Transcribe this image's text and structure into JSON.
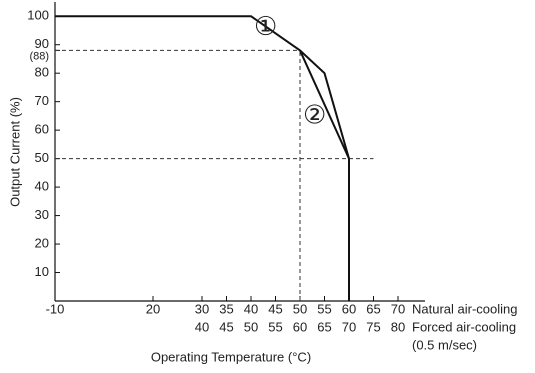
{
  "chart_data": {
    "type": "line",
    "x_label": "Operating Temperature (°C)",
    "y_label": "Output Current (%)",
    "x_row_label": "Natural air-cooling",
    "x2_row_label": "Forced air-cooling",
    "x2_row_note": "(0.5 m/sec)",
    "xticks": [
      -10,
      20,
      30,
      35,
      40,
      45,
      50,
      55,
      60,
      65,
      70
    ],
    "x2ticks": [
      null,
      null,
      40,
      45,
      50,
      55,
      60,
      65,
      70,
      75,
      80
    ],
    "ylim": [
      0,
      105
    ],
    "yticks": [
      10,
      20,
      30,
      40,
      50,
      60,
      70,
      80,
      {
        "value": 88,
        "label": "(88)"
      },
      90,
      100
    ],
    "series": [
      {
        "name": "①",
        "color": "#111111",
        "x": [
          -10,
          40,
          50,
          55,
          60,
          60
        ],
        "values": [
          100,
          100,
          88,
          80,
          50,
          0
        ],
        "label_at": [
          43,
          96
        ]
      },
      {
        "name": "②",
        "color": "#111111",
        "x": [
          50,
          60
        ],
        "values": [
          88,
          50
        ],
        "label_at": [
          53,
          65
        ]
      }
    ],
    "dashed_h": [
      {
        "y": 88,
        "x_end": 50
      },
      {
        "y": 50,
        "x_end": 65
      }
    ],
    "dashed_v": [
      {
        "x": 50,
        "y_end": 88
      }
    ]
  }
}
